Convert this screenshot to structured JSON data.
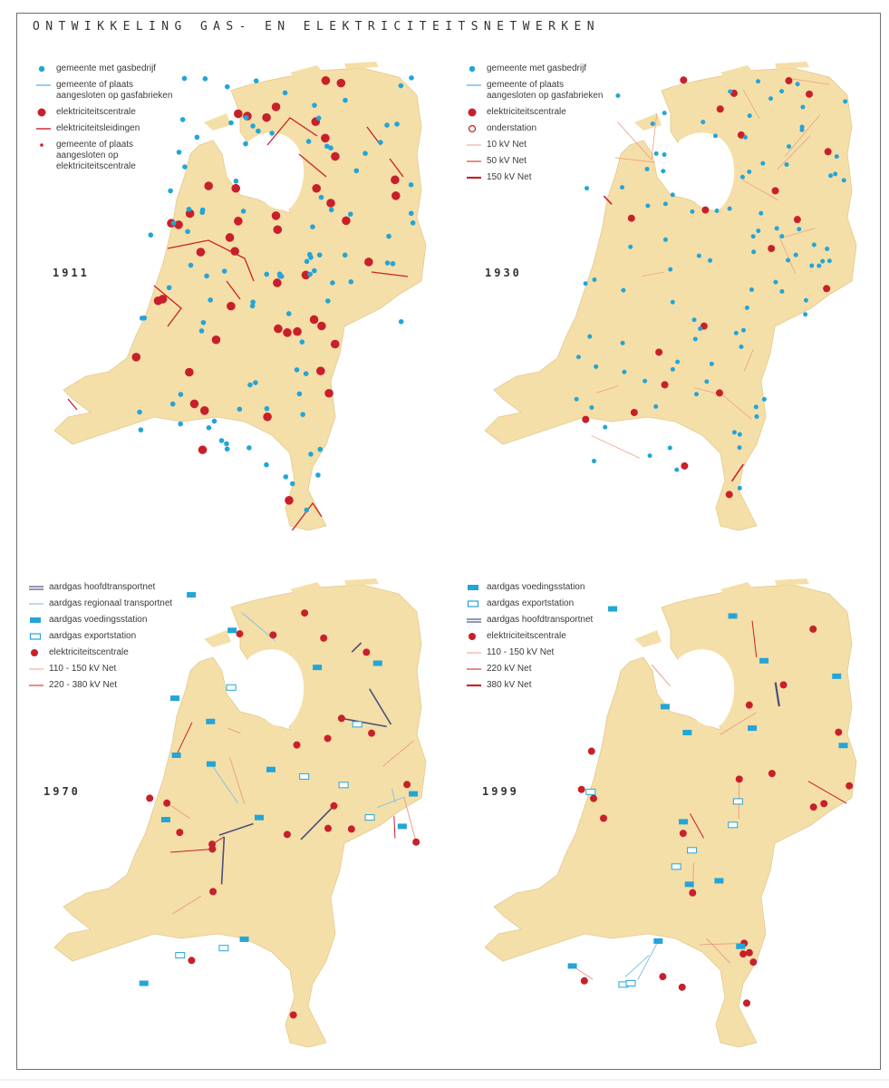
{
  "title": "ONTWIKKELING GAS- EN ELEKTRICITEITSNETWERKEN",
  "colors": {
    "land": "#f5dfa8",
    "gas": "#22a5d8",
    "power": "#c8202b",
    "grid_light": "#eba089",
    "grid_mid": "#d9604c",
    "gas_main": "#4a4f7a",
    "gas_regional": "#86c3e3"
  },
  "panels": [
    {
      "year": "1911",
      "legend": [
        {
          "icon": "blue-dot-icon",
          "label": "gemeente met gasbedrijf"
        },
        {
          "icon": "blue-line-icon",
          "label": "gemeente of plaats\naangesloten op gasfabrieken"
        },
        {
          "icon": "red-dot-icon",
          "label": "elektriciteitscentrale"
        },
        {
          "icon": "red-line-icon",
          "label": "elektriciteitsleidingen"
        },
        {
          "icon": "small-red-dot-icon",
          "label": "gemeente of plaats\naangesloten op\nelektriciteitscentrale"
        }
      ]
    },
    {
      "year": "1930",
      "legend": [
        {
          "icon": "blue-dot-icon",
          "label": "gemeente met gasbedrijf"
        },
        {
          "icon": "blue-line-icon",
          "label": "gemeente of plaats\naangesloten op gasfabrieken"
        },
        {
          "icon": "red-dot-icon",
          "label": "elektriciteitscentrale"
        },
        {
          "icon": "red-ring-icon",
          "label": "onderstation"
        },
        {
          "icon": "thin-line-icon",
          "label": "10 kV Net"
        },
        {
          "icon": "mid-line-icon",
          "label": "50 kV Net"
        },
        {
          "icon": "thick-line-icon",
          "label": "150 kV Net"
        }
      ]
    },
    {
      "year": "1970",
      "legend": [
        {
          "icon": "dark-double-line-icon",
          "label": "aardgas hoofdtransportnet"
        },
        {
          "icon": "light-blue-line-icon",
          "label": "aardgas regionaal transportnet"
        },
        {
          "icon": "blue-square-icon",
          "label": "aardgas voedingsstation"
        },
        {
          "icon": "hollow-square-icon",
          "label": "aardgas exportstation"
        },
        {
          "icon": "red-dot-icon",
          "label": "elektriciteitscentrale"
        },
        {
          "icon": "thin-line-icon",
          "label": "110 - 150 kV Net"
        },
        {
          "icon": "mid-line-icon",
          "label": "220 - 380 kV Net"
        }
      ]
    },
    {
      "year": "1999",
      "legend": [
        {
          "icon": "blue-square-icon",
          "label": "aardgas voedingsstation"
        },
        {
          "icon": "hollow-square-icon",
          "label": "aardgas exportstation"
        },
        {
          "icon": "dark-double-line-icon",
          "label": "aardgas hoofdtransportnet"
        },
        {
          "icon": "red-dot-icon",
          "label": "elektriciteitscentrale"
        },
        {
          "icon": "thin-line-icon",
          "label": "110 - 150 kV Net"
        },
        {
          "icon": "mid-line-icon",
          "label": "220 kV Net"
        },
        {
          "icon": "thick-line-icon",
          "label": "380 kV Net"
        }
      ]
    }
  ]
}
